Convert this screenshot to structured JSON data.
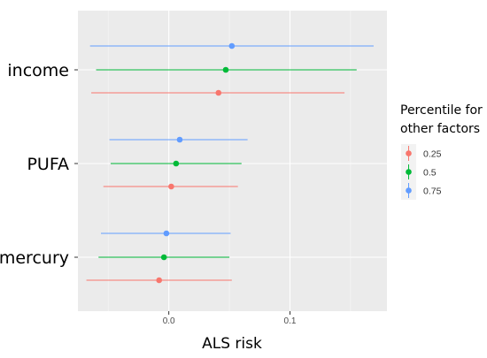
{
  "chart_data": {
    "type": "forest",
    "title": "",
    "xlabel": "ALS risk",
    "ylabel": "",
    "xlim": [
      -0.075,
      0.18
    ],
    "x_ticks": [
      0.0,
      0.1
    ],
    "x_tick_labels": [
      "0.0",
      "0.1"
    ],
    "grid": true,
    "categories": [
      "income",
      "PUFA",
      "mercury"
    ],
    "legend": {
      "title_lines": [
        "Percentile for",
        "other factors"
      ],
      "position": "right",
      "entries": [
        {
          "label": "0.25",
          "color": "#F8766D"
        },
        {
          "label": "0.5",
          "color": "#00BA38"
        },
        {
          "label": "0.75",
          "color": "#619CFF"
        }
      ]
    },
    "series": [
      {
        "name": "0.25",
        "color": "#F8766D",
        "points": [
          {
            "category": "income",
            "estimate": 0.041,
            "lower": -0.064,
            "upper": 0.145
          },
          {
            "category": "PUFA",
            "estimate": 0.002,
            "lower": -0.054,
            "upper": 0.057
          },
          {
            "category": "mercury",
            "estimate": -0.008,
            "lower": -0.068,
            "upper": 0.052
          }
        ]
      },
      {
        "name": "0.5",
        "color": "#00BA38",
        "points": [
          {
            "category": "income",
            "estimate": 0.047,
            "lower": -0.06,
            "upper": 0.155
          },
          {
            "category": "PUFA",
            "estimate": 0.006,
            "lower": -0.048,
            "upper": 0.06
          },
          {
            "category": "mercury",
            "estimate": -0.004,
            "lower": -0.058,
            "upper": 0.05
          }
        ]
      },
      {
        "name": "0.75",
        "color": "#619CFF",
        "points": [
          {
            "category": "income",
            "estimate": 0.052,
            "lower": -0.065,
            "upper": 0.169
          },
          {
            "category": "PUFA",
            "estimate": 0.009,
            "lower": -0.049,
            "upper": 0.065
          },
          {
            "category": "mercury",
            "estimate": -0.002,
            "lower": -0.056,
            "upper": 0.051
          }
        ]
      }
    ]
  }
}
